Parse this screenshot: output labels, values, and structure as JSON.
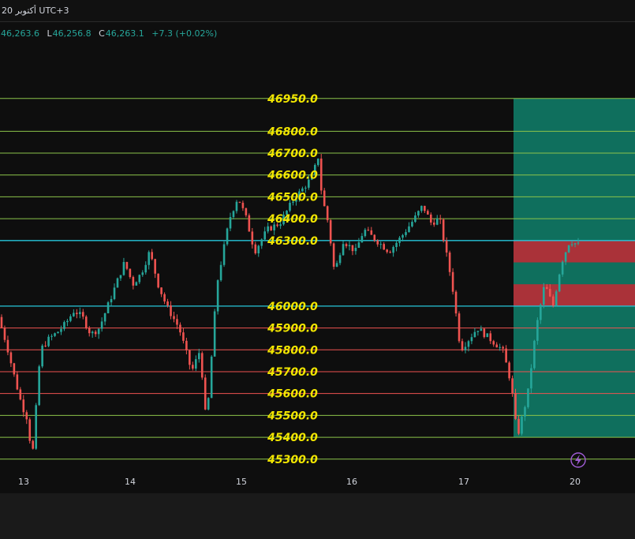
{
  "header": {
    "title": "20 أكتوبر UTC+3"
  },
  "ohlc": {
    "open_key": "",
    "open": "46,263.6",
    "low_key": "L",
    "low": "46,256.8",
    "close_key": "C",
    "close": "46,263.1",
    "change": "+7.3 (+0.02%)"
  },
  "colors": {
    "background": "#0e0e0e",
    "up_candle": "#26a69a",
    "down_candle": "#ef5350",
    "level_green": "#8bc34a",
    "level_cyan": "#26c6da",
    "level_red": "#ef5350",
    "label_yellow": "#f2e600",
    "profit_zone": "#0f7a66",
    "loss_zone": "#c62833"
  },
  "chart_data": {
    "type": "candlestick",
    "ylim": [
      45245,
      47220
    ],
    "x_labels": [
      "13",
      "14",
      "15",
      "16",
      "17",
      "20"
    ],
    "levels": [
      {
        "label": "46950.0",
        "value": 46950,
        "kind": "green"
      },
      {
        "label": "46800.0",
        "value": 46800,
        "kind": "green"
      },
      {
        "label": "46700.0",
        "value": 46700,
        "kind": "green"
      },
      {
        "label": "46600.0",
        "value": 46600,
        "kind": "green"
      },
      {
        "label": "46500.0",
        "value": 46500,
        "kind": "green"
      },
      {
        "label": "46400.0",
        "value": 46400,
        "kind": "green"
      },
      {
        "label": "46300.0",
        "value": 46300,
        "kind": "cyan"
      },
      {
        "label": "46000.0",
        "value": 46000,
        "kind": "cyan"
      },
      {
        "label": "45900.0",
        "value": 45900,
        "kind": "red"
      },
      {
        "label": "45800.0",
        "value": 45800,
        "kind": "red"
      },
      {
        "label": "45700.0",
        "value": 45700,
        "kind": "red"
      },
      {
        "label": "45600.0",
        "value": 45600,
        "kind": "red"
      },
      {
        "label": "45500.0",
        "value": 45500,
        "kind": "green"
      },
      {
        "label": "45400.0",
        "value": 45400,
        "kind": "green"
      },
      {
        "label": "45300.0",
        "value": 45300,
        "kind": "green"
      }
    ],
    "zones": [
      {
        "kind": "profit",
        "from": 45400,
        "to": 46950
      },
      {
        "kind": "loss",
        "from": 46200,
        "to": 46300
      },
      {
        "kind": "loss",
        "from": 46000,
        "to": 46100
      }
    ],
    "price_path": [
      [
        0,
        45950
      ],
      [
        0.2,
        45820
      ],
      [
        0.35,
        45700
      ],
      [
        0.55,
        45550
      ],
      [
        0.7,
        45480
      ],
      [
        0.8,
        45290
      ],
      [
        1.0,
        45800
      ],
      [
        1.2,
        45850
      ],
      [
        1.4,
        45880
      ],
      [
        1.6,
        45920
      ],
      [
        1.8,
        45980
      ],
      [
        2.0,
        45950
      ],
      [
        2.2,
        45870
      ],
      [
        2.4,
        45900
      ],
      [
        2.6,
        46000
      ],
      [
        2.8,
        46100
      ],
      [
        3.0,
        46200
      ],
      [
        3.2,
        46100
      ],
      [
        3.4,
        46150
      ],
      [
        3.6,
        46250
      ],
      [
        3.8,
        46100
      ],
      [
        4.0,
        46000
      ],
      [
        4.3,
        45900
      ],
      [
        4.6,
        45700
      ],
      [
        4.8,
        45800
      ],
      [
        4.95,
        45450
      ],
      [
        5.2,
        46100
      ],
      [
        5.5,
        46400
      ],
      [
        5.7,
        46500
      ],
      [
        5.9,
        46400
      ],
      [
        6.1,
        46250
      ],
      [
        6.4,
        46350
      ],
      [
        6.7,
        46380
      ],
      [
        7.0,
        46480
      ],
      [
        7.3,
        46550
      ],
      [
        7.5,
        46600
      ],
      [
        7.6,
        46700
      ],
      [
        7.7,
        46500
      ],
      [
        7.85,
        46380
      ],
      [
        8.0,
        46150
      ],
      [
        8.2,
        46300
      ],
      [
        8.5,
        46250
      ],
      [
        8.7,
        46350
      ],
      [
        9.0,
        46300
      ],
      [
        9.3,
        46250
      ],
      [
        9.6,
        46320
      ],
      [
        9.9,
        46400
      ],
      [
        10.1,
        46460
      ],
      [
        10.3,
        46380
      ],
      [
        10.5,
        46400
      ],
      [
        10.65,
        46250
      ],
      [
        10.8,
        46100
      ],
      [
        11.0,
        45800
      ],
      [
        11.2,
        45850
      ],
      [
        11.4,
        45900
      ],
      [
        11.7,
        45850
      ],
      [
        12.0,
        45800
      ],
      [
        12.2,
        45650
      ],
      [
        12.35,
        45400
      ],
      [
        12.6,
        45600
      ],
      [
        12.8,
        45900
      ],
      [
        13.0,
        46100
      ],
      [
        13.2,
        46000
      ],
      [
        13.4,
        46200
      ],
      [
        13.6,
        46300
      ],
      [
        13.8,
        46280
      ]
    ]
  }
}
